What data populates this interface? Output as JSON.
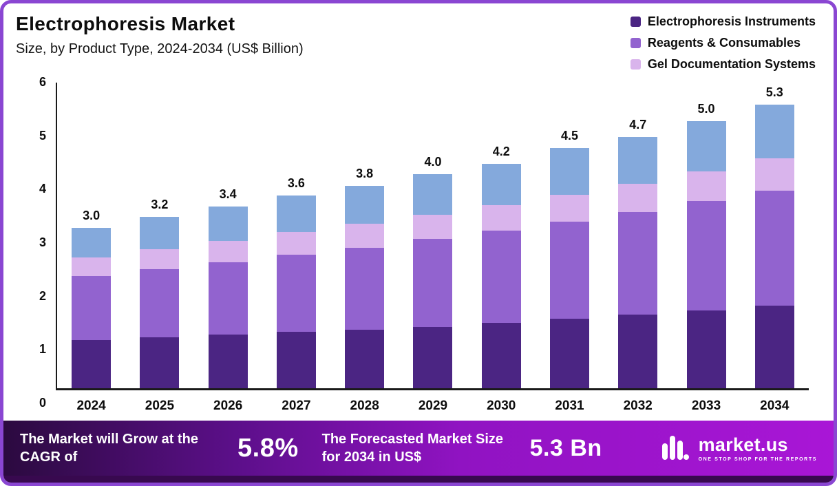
{
  "header": {
    "title": "Electrophoresis  Market",
    "subtitle": "Size, by Product Type, 2024-2034 (US$ Billion)"
  },
  "legend": [
    {
      "label": "Electrophoresis Instruments",
      "color": "#4b2583"
    },
    {
      "label": "Reagents & Consumables",
      "color": "#9263cf"
    },
    {
      "label": "Gel Documentation Systems",
      "color": "#d9b4ec"
    }
  ],
  "chart_data": {
    "type": "bar",
    "stacked": true,
    "title": "Electrophoresis Market Size, by Product Type, 2024-2034 (US$ Billion)",
    "categories": [
      "2024",
      "2025",
      "2026",
      "2027",
      "2028",
      "2029",
      "2030",
      "2031",
      "2032",
      "2033",
      "2034"
    ],
    "series": [
      {
        "name": "Electrophoresis Instruments",
        "color": "#4b2583",
        "values": [
          0.9,
          0.95,
          1.0,
          1.05,
          1.1,
          1.15,
          1.22,
          1.3,
          1.38,
          1.45,
          1.55
        ]
      },
      {
        "name": "Reagents & Consumables",
        "color": "#9263cf",
        "values": [
          1.2,
          1.28,
          1.36,
          1.45,
          1.53,
          1.65,
          1.73,
          1.82,
          1.92,
          2.05,
          2.15
        ]
      },
      {
        "name": "Gel Documentation Systems",
        "color": "#d9b4ec",
        "values": [
          0.35,
          0.37,
          0.4,
          0.42,
          0.45,
          0.45,
          0.47,
          0.5,
          0.52,
          0.55,
          0.6
        ]
      },
      {
        "name": "unlabeled-blue-segment",
        "color": "#84a9dc",
        "values": [
          0.55,
          0.6,
          0.64,
          0.68,
          0.7,
          0.75,
          0.78,
          0.88,
          0.88,
          0.95,
          1.0
        ]
      }
    ],
    "totals_labels": [
      "3.0",
      "3.2",
      "3.4",
      "3.6",
      "3.8",
      "4.0",
      "4.2",
      "4.5",
      "4.7",
      "5.0",
      "5.3"
    ],
    "ylim": [
      0,
      6
    ],
    "ytick_step": 1,
    "grid": false,
    "legend_position": "top-right"
  },
  "banner": {
    "cagr_text": "The Market will Grow at the CAGR of",
    "cagr_value": "5.8%",
    "forecast_text": "The Forecasted Market Size for 2034 in US$",
    "forecast_value": "5.3 Bn",
    "brand": "market.us",
    "brand_tagline": "ONE STOP SHOP FOR THE REPORTS"
  }
}
